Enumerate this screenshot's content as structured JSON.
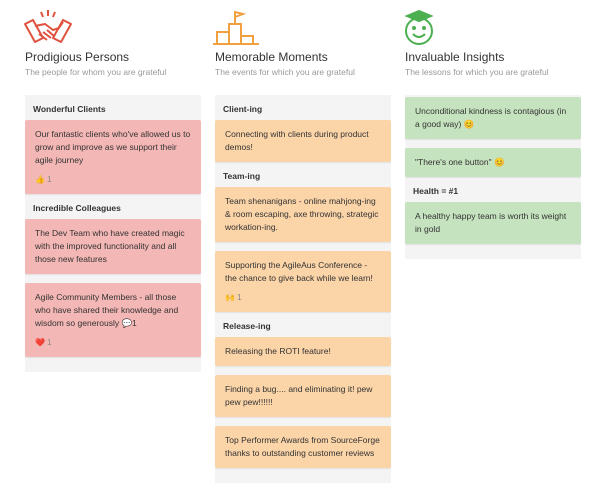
{
  "columns": [
    {
      "title": "Prodigious Persons",
      "subtitle": "The people for whom you are grateful",
      "color": "#f3b7b5",
      "groups": [
        {
          "title": "Wonderful Clients",
          "cards": [
            {
              "text": "Our fantastic clients who've allowed us to grow and improve as we support their agile journey",
              "reaction": "👍 1"
            }
          ]
        },
        {
          "title": "Incredible Colleagues",
          "cards": [
            {
              "text": "The Dev Team who have created magic with the improved functionality and all those new features"
            },
            {
              "text": "Agile Community Members - all those who have shared their knowledge and wisdom so generously 💬1",
              "reaction": "❤️ 1"
            }
          ]
        }
      ]
    },
    {
      "title": "Memorable Moments",
      "subtitle": "The events for which you are grateful",
      "color": "#fbd4a8",
      "groups": [
        {
          "title": "Client-ing",
          "cards": [
            {
              "text": "Connecting with clients during product demos!"
            }
          ]
        },
        {
          "title": "Team-ing",
          "cards": [
            {
              "text": "Team shenanigans - online mahjong-ing & room escaping, axe throwing, strategic workation-ing."
            },
            {
              "text": "Supporting the AgileAus Conference - the chance to give back while we learn!",
              "reaction": "🙌 1"
            }
          ]
        },
        {
          "title": "Release-ing",
          "cards": [
            {
              "text": "Releasing the ROTI feature!"
            },
            {
              "text": "Finding a bug.... and eliminating it! pew pew pew!!!!!!"
            },
            {
              "text": "Top Performer Awards from SourceForge thanks to outstanding customer reviews"
            }
          ]
        }
      ]
    },
    {
      "title": "Invaluable Insights",
      "subtitle": "The lessons for which you are grateful",
      "color": "#c6e3bf",
      "groups": [
        {
          "cards": [
            {
              "text": "Unconditional kindness is contagious (in a good way) 😊"
            },
            {
              "text": "\"There's one button\" 😊"
            }
          ]
        },
        {
          "title": "Health = #1",
          "cards": [
            {
              "text": "A healthy happy team is worth its weight in gold"
            }
          ]
        }
      ]
    }
  ]
}
